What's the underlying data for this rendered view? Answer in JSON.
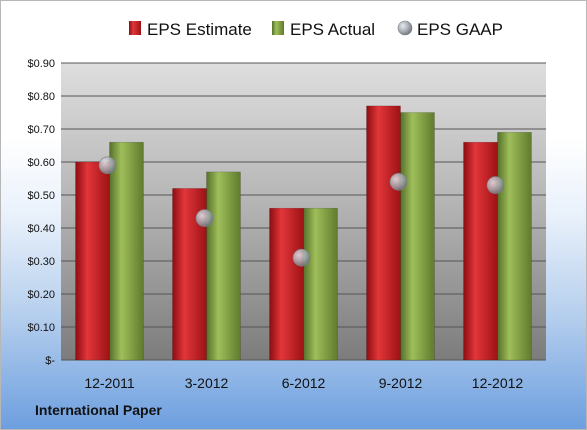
{
  "company": "International Paper",
  "chart_data": {
    "type": "bar",
    "categories": [
      "12-2011",
      "3-2012",
      "6-2012",
      "9-2012",
      "12-2012"
    ],
    "series": [
      {
        "name": "EPS Estimate",
        "kind": "bar",
        "color": "#c8191e",
        "values": [
          0.6,
          0.52,
          0.46,
          0.77,
          0.66
        ]
      },
      {
        "name": "EPS Actual",
        "kind": "bar",
        "color": "#7d9c3a",
        "values": [
          0.66,
          0.57,
          0.46,
          0.75,
          0.69
        ]
      },
      {
        "name": "EPS GAAP",
        "kind": "marker",
        "color": "#9aa0a8",
        "values": [
          0.59,
          0.43,
          0.31,
          0.54,
          0.53
        ]
      }
    ],
    "ylim": [
      0,
      0.9
    ],
    "yticks": [
      0,
      0.1,
      0.2,
      0.3,
      0.4,
      0.5,
      0.6,
      0.7,
      0.8,
      0.9
    ],
    "ytick_labels": [
      "$-",
      "$0.10",
      "$0.20",
      "$0.30",
      "$0.40",
      "$0.50",
      "$0.60",
      "$0.70",
      "$0.80",
      "$0.90"
    ],
    "grid": true,
    "legend": "top"
  }
}
